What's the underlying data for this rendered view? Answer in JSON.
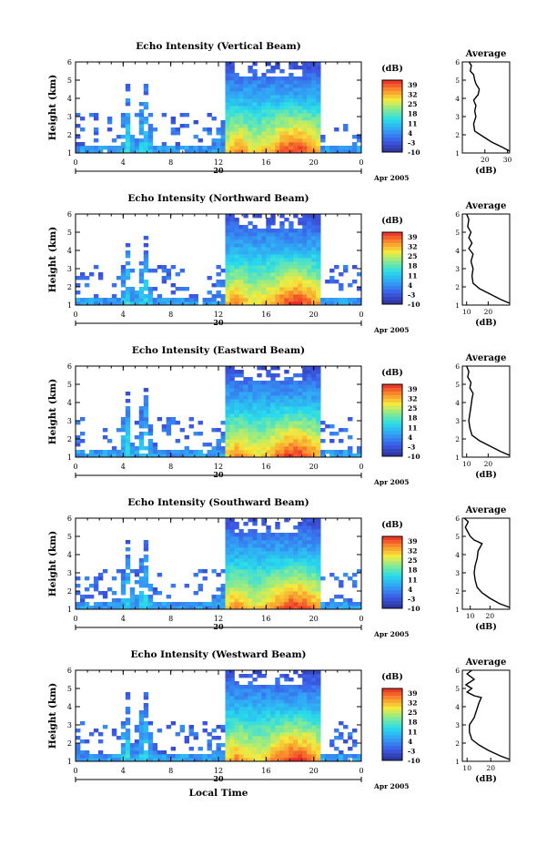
{
  "chart_data": [
    {
      "type": "heatmap",
      "title": "Echo Intensity (Vertical Beam)",
      "ylabel": "Height (km)",
      "xlabel": "",
      "x_ticks": [
        "0",
        "4",
        "8",
        "12",
        "16",
        "20",
        "0"
      ],
      "y_ticks": [
        "1",
        "2",
        "3",
        "4",
        "5",
        "6"
      ],
      "date_label": "20",
      "date_suffix": "Apr 2005",
      "colorbar": {
        "unit": "(dB)",
        "ticks": [
          "39",
          "32",
          "25",
          "18",
          "11",
          "4",
          "-3",
          "-10"
        ],
        "range": [
          -10,
          39
        ]
      },
      "average": {
        "title": "Average",
        "xlabel": "(dB)",
        "x_ticks": [
          "20",
          "30"
        ],
        "xlim": [
          10,
          31
        ],
        "y_ticks": [
          "1",
          "2",
          "3",
          "4",
          "5",
          "6"
        ],
        "profile": [
          [
            31,
            1.1
          ],
          [
            28,
            1.3
          ],
          [
            23,
            1.6
          ],
          [
            18,
            2.0
          ],
          [
            15.5,
            2.2
          ],
          [
            15,
            2.6
          ],
          [
            16,
            3.0
          ],
          [
            15.5,
            3.3
          ],
          [
            16,
            3.6
          ],
          [
            15,
            3.9
          ],
          [
            17,
            4.2
          ],
          [
            17.5,
            4.5
          ],
          [
            16,
            4.8
          ],
          [
            15.5,
            5.0
          ],
          [
            15,
            5.3
          ],
          [
            13.5,
            5.5
          ],
          [
            14,
            5.8
          ],
          [
            13,
            6.0
          ]
        ]
      }
    },
    {
      "type": "heatmap",
      "title": "Echo Intensity (Northward Beam)",
      "ylabel": "Height (km)",
      "xlabel": "",
      "x_ticks": [
        "0",
        "4",
        "8",
        "12",
        "16",
        "20",
        "0"
      ],
      "y_ticks": [
        "1",
        "2",
        "3",
        "4",
        "5",
        "6"
      ],
      "date_label": "20",
      "date_suffix": "Apr 2005",
      "colorbar": {
        "unit": "(dB)",
        "ticks": [
          "39",
          "32",
          "25",
          "18",
          "11",
          "4",
          "-3",
          "-10"
        ],
        "range": [
          -10,
          39
        ]
      },
      "average": {
        "title": "Average",
        "xlabel": "(dB)",
        "x_ticks": [
          "10",
          "20"
        ],
        "xlim": [
          8,
          30
        ],
        "y_ticks": [
          "1",
          "2",
          "3",
          "4",
          "5",
          "6"
        ],
        "profile": [
          [
            30,
            1.1
          ],
          [
            26,
            1.3
          ],
          [
            21,
            1.6
          ],
          [
            16,
            1.9
          ],
          [
            13,
            2.2
          ],
          [
            12.5,
            2.6
          ],
          [
            13,
            3.0
          ],
          [
            12,
            3.4
          ],
          [
            13,
            3.8
          ],
          [
            11,
            4.1
          ],
          [
            12.5,
            4.4
          ],
          [
            11,
            4.7
          ],
          [
            12,
            5.0
          ],
          [
            10.5,
            5.3
          ],
          [
            11,
            5.7
          ],
          [
            10,
            6.0
          ]
        ]
      }
    },
    {
      "type": "heatmap",
      "title": "Echo Intensity (Eastward Beam)",
      "ylabel": "Height (km)",
      "xlabel": "",
      "x_ticks": [
        "0",
        "4",
        "8",
        "12",
        "16",
        "20",
        "0"
      ],
      "y_ticks": [
        "1",
        "2",
        "3",
        "4",
        "5",
        "6"
      ],
      "date_label": "20",
      "date_suffix": "Apr 2005",
      "colorbar": {
        "unit": "(dB)",
        "ticks": [
          "39",
          "32",
          "25",
          "18",
          "11",
          "4",
          "-3",
          "-10"
        ],
        "range": [
          -10,
          39
        ]
      },
      "average": {
        "title": "Average",
        "xlabel": "(dB)",
        "x_ticks": [
          "10",
          "20"
        ],
        "xlim": [
          8,
          30
        ],
        "y_ticks": [
          "1",
          "2",
          "3",
          "4",
          "5",
          "6"
        ],
        "profile": [
          [
            30,
            1.1
          ],
          [
            26,
            1.3
          ],
          [
            21,
            1.6
          ],
          [
            16,
            1.9
          ],
          [
            12.5,
            2.2
          ],
          [
            11.5,
            2.6
          ],
          [
            11,
            3.0
          ],
          [
            11.5,
            3.4
          ],
          [
            12,
            3.8
          ],
          [
            12.5,
            4.2
          ],
          [
            13,
            4.5
          ],
          [
            11.5,
            4.8
          ],
          [
            12,
            5.1
          ],
          [
            10.5,
            5.4
          ],
          [
            11,
            5.7
          ],
          [
            10,
            6.0
          ]
        ]
      }
    },
    {
      "type": "heatmap",
      "title": "Echo Intensity (Southward Beam)",
      "ylabel": "Height (km)",
      "xlabel": "",
      "x_ticks": [
        "0",
        "4",
        "8",
        "12",
        "16",
        "20",
        "0"
      ],
      "y_ticks": [
        "1",
        "2",
        "3",
        "4",
        "5",
        "6"
      ],
      "date_label": "20",
      "date_suffix": "Apr 2005",
      "colorbar": {
        "unit": "(dB)",
        "ticks": [
          "39",
          "32",
          "25",
          "18",
          "11",
          "4",
          "-3",
          "-10"
        ],
        "range": [
          -10,
          39
        ]
      },
      "average": {
        "title": "Average",
        "xlabel": "(dB)",
        "x_ticks": [
          "10",
          "20"
        ],
        "xlim": [
          6,
          30
        ],
        "y_ticks": [
          "1",
          "2",
          "3",
          "4",
          "5",
          "6"
        ],
        "profile": [
          [
            30,
            1.1
          ],
          [
            25,
            1.3
          ],
          [
            20,
            1.6
          ],
          [
            16,
            1.9
          ],
          [
            13.5,
            2.2
          ],
          [
            12.5,
            2.6
          ],
          [
            12,
            3.0
          ],
          [
            12.5,
            3.4
          ],
          [
            13.5,
            3.8
          ],
          [
            14,
            4.2
          ],
          [
            16,
            4.6
          ],
          [
            12,
            4.8
          ],
          [
            10,
            5.0
          ],
          [
            9,
            5.2
          ],
          [
            7.5,
            5.5
          ],
          [
            9,
            5.8
          ],
          [
            7,
            6.0
          ]
        ]
      }
    },
    {
      "type": "heatmap",
      "title": "Echo Intensity (Westward Beam)",
      "ylabel": "Height (km)",
      "xlabel": "Local Time",
      "x_ticks": [
        "0",
        "4",
        "8",
        "12",
        "16",
        "20",
        "0"
      ],
      "y_ticks": [
        "1",
        "2",
        "3",
        "4",
        "5",
        "6"
      ],
      "date_label": "20",
      "date_suffix": "Apr 2005",
      "colorbar": {
        "unit": "(dB)",
        "ticks": [
          "39",
          "32",
          "25",
          "18",
          "11",
          "4",
          "-3",
          "-10"
        ],
        "range": [
          -10,
          39
        ]
      },
      "average": {
        "title": "Average",
        "xlabel": "(dB)",
        "x_ticks": [
          "10",
          "20"
        ],
        "xlim": [
          8,
          28
        ],
        "y_ticks": [
          "1",
          "2",
          "3",
          "4",
          "5",
          "6"
        ],
        "profile": [
          [
            28,
            1.1
          ],
          [
            24,
            1.3
          ],
          [
            19,
            1.6
          ],
          [
            15,
            1.9
          ],
          [
            12,
            2.2
          ],
          [
            11,
            2.6
          ],
          [
            11,
            3.0
          ],
          [
            13,
            3.4
          ],
          [
            14,
            3.8
          ],
          [
            15,
            4.2
          ],
          [
            16,
            4.5
          ],
          [
            13,
            4.6
          ],
          [
            10,
            4.8
          ],
          [
            12,
            5.0
          ],
          [
            9.5,
            5.2
          ],
          [
            13,
            5.5
          ],
          [
            10,
            5.8
          ],
          [
            12,
            6.0
          ]
        ]
      }
    }
  ]
}
